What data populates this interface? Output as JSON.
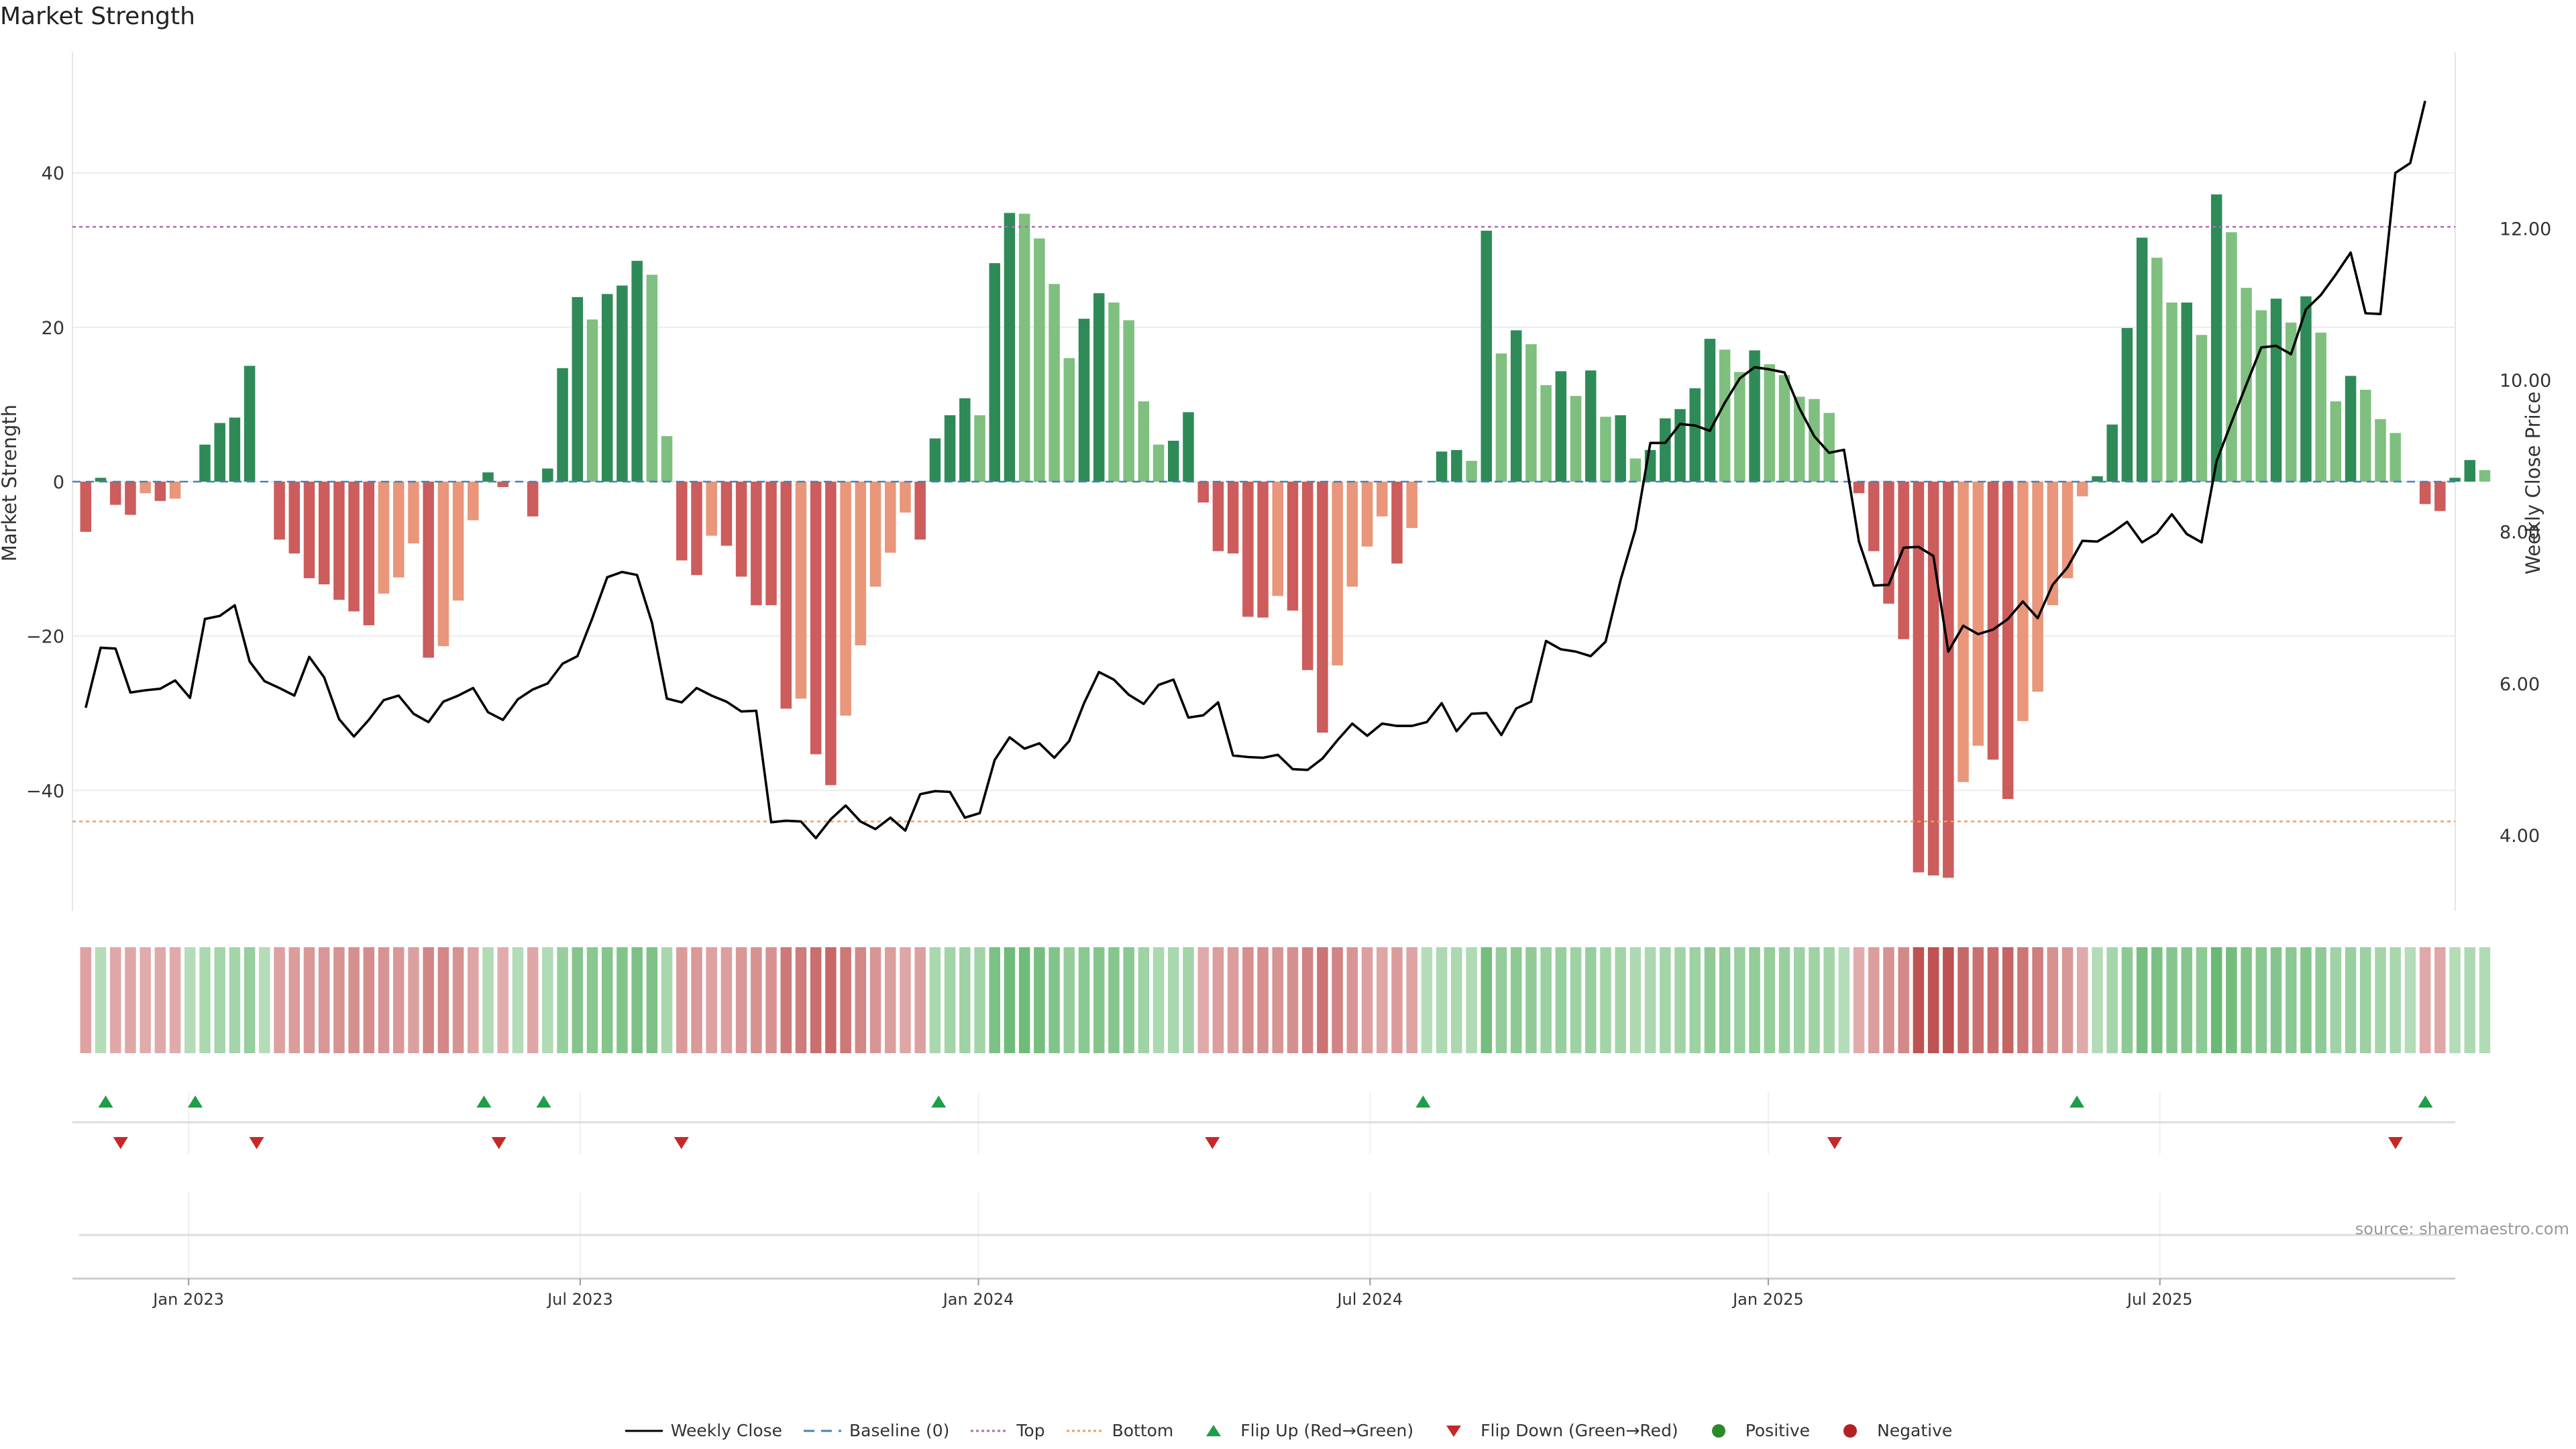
{
  "title": "Market Strength",
  "source": "source: sharemaestro.com",
  "colors": {
    "pos_strong": "#2e8b57",
    "pos_light": "#7fbf7f",
    "neg_strong": "#cd5c5c",
    "neg_light": "#e9967a",
    "top_line": "#b06ab3",
    "bottom_line": "#e8a068",
    "baseline": "#4682b4",
    "price_line": "#000000",
    "flip_up": "#1e9e4a",
    "flip_down": "#c62828",
    "positive_dot": "#2a8a2a",
    "negative_dot": "#b22222"
  },
  "legend": [
    {
      "key": "weekly_close",
      "label": "Weekly Close"
    },
    {
      "key": "baseline",
      "label": "Baseline (0)"
    },
    {
      "key": "top",
      "label": "Top"
    },
    {
      "key": "bottom",
      "label": "Bottom"
    },
    {
      "key": "flip_up",
      "label": "Flip Up (Red→Green)"
    },
    {
      "key": "flip_down",
      "label": "Flip Down (Green→Red)"
    },
    {
      "key": "positive",
      "label": "Positive"
    },
    {
      "key": "negative",
      "label": "Negative"
    }
  ],
  "chart_data": {
    "type": "bar",
    "title": "Market Strength",
    "ylabel": "Market Strength",
    "y2label": "Weekly Close Price",
    "ylim": [
      -55.6,
      55.6
    ],
    "y2lim": [
      3.0,
      14.32
    ],
    "yticks": [
      40,
      20,
      0,
      -20,
      -40
    ],
    "ytick_labels": [
      "40",
      "20",
      "0",
      "−20",
      "−40"
    ],
    "y2ticks": [
      12,
      10,
      8,
      6,
      4
    ],
    "y2tick_labels": [
      "12.00",
      "10.00",
      "8.00",
      "6.00",
      "4.00"
    ],
    "xlim": [
      -8,
      1428
    ],
    "xticks": [
      62,
      298,
      538,
      774,
      1014,
      1250
    ],
    "xtick_labels": [
      "Jan 2023",
      "Jul 2023",
      "Jan 2024",
      "Jul 2024",
      "Jan 2025",
      "Jul 2025"
    ],
    "top_level": 33.0,
    "bottom_level": -44.0,
    "baseline": 0,
    "strength": [
      -6.5,
      0.5,
      -3.0,
      -4.3,
      -1.5,
      -2.5,
      -2.2,
      0,
      4.8,
      7.6,
      8.3,
      15.0,
      0,
      -7.5,
      -9.3,
      -12.5,
      -13.3,
      -15.3,
      -16.8,
      -18.6,
      -14.5,
      -12.4,
      -8.0,
      -22.8,
      -21.3,
      -15.4,
      -5.0,
      1.2,
      -0.7,
      0,
      -4.5,
      1.7,
      14.7,
      23.9,
      21.0,
      24.3,
      25.4,
      28.6,
      26.8,
      5.9,
      -10.2,
      -12.1,
      -7.0,
      -8.3,
      -12.3,
      -16.0,
      -16.0,
      -29.4,
      -28.1,
      -35.3,
      -39.3,
      -30.3,
      -21.2,
      -13.6,
      -9.2,
      -4.0,
      -7.5,
      5.6,
      8.6,
      10.8,
      8.6,
      28.3,
      34.8,
      34.7,
      31.5,
      25.6,
      16.0,
      21.1,
      24.4,
      23.2,
      20.9,
      10.4,
      4.8,
      5.3,
      9.0,
      -2.7,
      -9.0,
      -9.3,
      -17.5,
      -17.6,
      -14.8,
      -16.7,
      -24.4,
      -32.5,
      -23.8,
      -13.6,
      -8.4,
      -4.5,
      -10.6,
      -6.0,
      0,
      3.9,
      4.1,
      2.7,
      32.5,
      16.6,
      19.6,
      17.8,
      12.5,
      14.3,
      11.1,
      14.4,
      8.4,
      8.6,
      3.0,
      4.1,
      8.2,
      9.4,
      12.1,
      18.5,
      17.1,
      14.2,
      17.0,
      15.2,
      13.8,
      11.0,
      10.7,
      8.9,
      0,
      -1.5,
      -9.0,
      -15.8,
      -20.4,
      -50.6,
      -51.0,
      -51.3,
      -38.9,
      -34.2,
      -36.0,
      -41.1,
      -31.0,
      -27.2,
      -16.0,
      -12.5,
      -1.9,
      0.7,
      7.4,
      19.9,
      31.6,
      29.0,
      23.2,
      23.2,
      19.0,
      37.2,
      32.3,
      25.1,
      22.2,
      23.7,
      20.6,
      24.0,
      19.3,
      10.4,
      13.7,
      11.9,
      8.1,
      6.3,
      0,
      -2.9,
      -3.8,
      0.5,
      2.8,
      1.5
    ],
    "weekly_close": [
      5.68,
      6.47,
      6.46,
      5.88,
      5.91,
      5.93,
      6.04,
      5.81,
      6.85,
      6.89,
      7.03,
      6.29,
      6.03,
      5.94,
      5.84,
      6.35,
      6.08,
      5.53,
      5.3,
      5.52,
      5.78,
      5.84,
      5.6,
      5.49,
      5.76,
      5.84,
      5.94,
      5.62,
      5.52,
      5.79,
      5.92,
      6.0,
      6.26,
      6.36,
      6.86,
      7.4,
      7.47,
      7.43,
      6.8,
      5.8,
      5.75,
      5.94,
      5.84,
      5.76,
      5.63,
      5.64,
      4.17,
      4.19,
      4.18,
      3.96,
      4.21,
      4.39,
      4.18,
      4.08,
      4.23,
      4.06,
      4.54,
      4.58,
      4.57,
      4.23,
      4.29,
      4.99,
      5.29,
      5.14,
      5.21,
      5.02,
      5.24,
      5.74,
      6.15,
      6.05,
      5.85,
      5.73,
      5.98,
      6.05,
      5.55,
      5.58,
      5.75,
      5.05,
      5.03,
      5.02,
      5.06,
      4.87,
      4.86,
      5.01,
      5.25,
      5.47,
      5.31,
      5.47,
      5.44,
      5.44,
      5.49,
      5.74,
      5.37,
      5.6,
      5.61,
      5.32,
      5.67,
      5.76,
      6.56,
      6.45,
      6.42,
      6.36,
      6.55,
      7.36,
      8.03,
      9.17,
      9.17,
      9.42,
      9.4,
      9.33,
      9.7,
      10.02,
      10.17,
      10.14,
      10.1,
      9.63,
      9.26,
      9.04,
      9.08,
      7.87,
      7.29,
      7.3,
      7.79,
      7.8,
      7.68,
      6.42,
      6.76,
      6.65,
      6.71,
      6.85,
      7.08,
      6.86,
      7.3,
      7.53,
      7.88,
      7.87,
      7.99,
      8.13,
      7.86,
      7.98,
      8.23,
      7.97,
      7.86,
      8.93,
      9.44,
      9.94,
      10.43,
      10.45,
      10.34,
      10.93,
      11.12,
      11.39,
      11.68,
      10.88,
      10.87,
      12.73,
      12.86,
      13.68
    ],
    "flip_up_x": [
      12,
      66,
      240,
      276,
      514,
      806,
      1200,
      1410
    ],
    "flip_down_x": [
      21,
      103,
      249,
      359,
      679,
      1054,
      1392
    ],
    "heat_x0": 0,
    "heat_dx": 8.98
  }
}
